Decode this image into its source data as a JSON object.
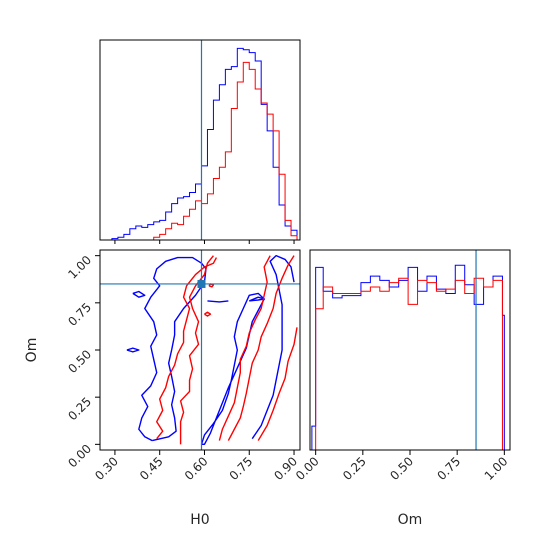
{
  "chart_data": [
    {
      "panel": "H0 marginal",
      "type": "histogram",
      "xlim": [
        0.25,
        0.92
      ],
      "truth": 0.59,
      "series": [
        {
          "color": "#0000ff",
          "edges": [
            0.25,
            0.27,
            0.29,
            0.31,
            0.33,
            0.35,
            0.37,
            0.39,
            0.41,
            0.43,
            0.45,
            0.47,
            0.49,
            0.51,
            0.53,
            0.55,
            0.57,
            0.59,
            0.61,
            0.63,
            0.65,
            0.67,
            0.69,
            0.71,
            0.73,
            0.75,
            0.77,
            0.79,
            0.81,
            0.83,
            0.85,
            0.87,
            0.89,
            0.91
          ],
          "counts": [
            0,
            0,
            1,
            2,
            4,
            8,
            10,
            9,
            11,
            13,
            14,
            20,
            26,
            30,
            31,
            34,
            40,
            53,
            79,
            100,
            111,
            122,
            124,
            137,
            136,
            134,
            128,
            97,
            78,
            52,
            25,
            10,
            7
          ]
        },
        {
          "color": "#ff0000",
          "edges": [
            0.25,
            0.27,
            0.29,
            0.31,
            0.33,
            0.35,
            0.37,
            0.39,
            0.41,
            0.43,
            0.45,
            0.47,
            0.49,
            0.51,
            0.53,
            0.55,
            0.57,
            0.59,
            0.61,
            0.63,
            0.65,
            0.67,
            0.69,
            0.71,
            0.73,
            0.75,
            0.77,
            0.79,
            0.81,
            0.83,
            0.85,
            0.87,
            0.89,
            0.91
          ],
          "counts": [
            0,
            0,
            0,
            0,
            0,
            0,
            0,
            0,
            0,
            2,
            4,
            8,
            12,
            11,
            17,
            22,
            28,
            26,
            33,
            44,
            52,
            63,
            94,
            113,
            127,
            122,
            108,
            98,
            90,
            78,
            47,
            14,
            3
          ]
        }
      ]
    },
    {
      "panel": "joint H0-Om",
      "type": "contour",
      "xlim": [
        0.25,
        0.92
      ],
      "ylim": [
        -0.03,
        1.03
      ],
      "truth": [
        0.59,
        0.85
      ],
      "series": [
        {
          "color": "#0000ff",
          "contours": [
            [
              [
                0.425,
                0.02
              ],
              [
                0.48,
                0.04
              ],
              [
                0.505,
                0.07
              ],
              [
                0.5,
                0.14
              ],
              [
                0.49,
                0.21
              ],
              [
                0.5,
                0.28
              ],
              [
                0.49,
                0.36
              ],
              [
                0.48,
                0.43
              ],
              [
                0.49,
                0.5
              ],
              [
                0.5,
                0.58
              ],
              [
                0.5,
                0.65
              ],
              [
                0.53,
                0.72
              ],
              [
                0.57,
                0.79
              ],
              [
                0.6,
                0.86
              ],
              [
                0.605,
                0.93
              ],
              [
                0.59,
                0.96
              ],
              [
                0.56,
                0.99
              ],
              [
                0.51,
                0.99
              ],
              [
                0.47,
                0.97
              ],
              [
                0.44,
                0.93
              ],
              [
                0.43,
                0.88
              ],
              [
                0.45,
                0.84
              ],
              [
                0.42,
                0.78
              ],
              [
                0.4,
                0.72
              ],
              [
                0.43,
                0.65
              ],
              [
                0.44,
                0.58
              ],
              [
                0.42,
                0.52
              ],
              [
                0.43,
                0.45
              ],
              [
                0.44,
                0.38
              ],
              [
                0.42,
                0.31
              ],
              [
                0.39,
                0.26
              ],
              [
                0.41,
                0.2
              ],
              [
                0.39,
                0.14
              ],
              [
                0.38,
                0.08
              ],
              [
                0.4,
                0.04
              ],
              [
                0.425,
                0.02
              ]
            ],
            [
              [
                0.59,
                0.0
              ],
              [
                0.6,
                0.05
              ],
              [
                0.63,
                0.11
              ],
              [
                0.66,
                0.18
              ],
              [
                0.68,
                0.27
              ],
              [
                0.69,
                0.34
              ],
              [
                0.7,
                0.42
              ],
              [
                0.71,
                0.5
              ],
              [
                0.7,
                0.57
              ],
              [
                0.71,
                0.65
              ],
              [
                0.73,
                0.72
              ],
              [
                0.75,
                0.79
              ],
              [
                0.78,
                0.8
              ],
              [
                0.8,
                0.77
              ],
              [
                0.78,
                0.71
              ],
              [
                0.76,
                0.65
              ],
              [
                0.75,
                0.58
              ],
              [
                0.74,
                0.51
              ],
              [
                0.72,
                0.44
              ],
              [
                0.7,
                0.37
              ],
              [
                0.68,
                0.3
              ],
              [
                0.66,
                0.22
              ],
              [
                0.64,
                0.14
              ],
              [
                0.62,
                0.06
              ],
              [
                0.6,
                0.0
              ],
              [
                0.59,
                0.0
              ]
            ],
            [
              [
                0.76,
                0.03
              ],
              [
                0.79,
                0.1
              ],
              [
                0.81,
                0.18
              ],
              [
                0.83,
                0.26
              ],
              [
                0.84,
                0.34
              ],
              [
                0.85,
                0.42
              ],
              [
                0.86,
                0.5
              ],
              [
                0.86,
                0.58
              ],
              [
                0.86,
                0.66
              ],
              [
                0.86,
                0.74
              ],
              [
                0.85,
                0.82
              ],
              [
                0.84,
                0.9
              ],
              [
                0.82,
                0.97
              ],
              [
                0.84,
                1.0
              ],
              [
                0.87,
                0.98
              ],
              [
                0.89,
                0.94
              ],
              [
                0.9,
                0.86
              ]
            ],
            [
              [
                0.34,
                0.5
              ],
              [
                0.36,
                0.49
              ],
              [
                0.38,
                0.5
              ],
              [
                0.36,
                0.51
              ],
              [
                0.34,
                0.5
              ]
            ],
            [
              [
                0.36,
                0.8
              ],
              [
                0.38,
                0.78
              ],
              [
                0.4,
                0.79
              ],
              [
                0.38,
                0.81
              ],
              [
                0.36,
                0.8
              ]
            ],
            [
              [
                0.61,
                0.76
              ],
              [
                0.65,
                0.755
              ],
              [
                0.68,
                0.76
              ]
            ],
            [
              [
                0.75,
                0.76
              ],
              [
                0.78,
                0.765
              ],
              [
                0.8,
                0.77
              ],
              [
                0.78,
                0.78
              ],
              [
                0.75,
                0.76
              ]
            ]
          ]
        },
        {
          "color": "#ff0000",
          "contours": [
            [
              [
                0.52,
                0.0
              ],
              [
                0.52,
                0.06
              ],
              [
                0.52,
                0.12
              ],
              [
                0.53,
                0.17
              ],
              [
                0.52,
                0.23
              ],
              [
                0.55,
                0.28
              ],
              [
                0.55,
                0.34
              ],
              [
                0.56,
                0.4
              ],
              [
                0.55,
                0.47
              ],
              [
                0.58,
                0.53
              ],
              [
                0.57,
                0.59
              ],
              [
                0.58,
                0.65
              ],
              [
                0.56,
                0.72
              ],
              [
                0.55,
                0.78
              ],
              [
                0.57,
                0.84
              ],
              [
                0.6,
                0.9
              ],
              [
                0.61,
                0.96
              ],
              [
                0.63,
                1.0
              ]
            ],
            [
              [
                0.44,
                0.03
              ],
              [
                0.46,
                0.07
              ],
              [
                0.44,
                0.12
              ],
              [
                0.46,
                0.18
              ],
              [
                0.45,
                0.24
              ],
              [
                0.47,
                0.3
              ],
              [
                0.48,
                0.36
              ],
              [
                0.5,
                0.42
              ],
              [
                0.51,
                0.48
              ],
              [
                0.53,
                0.54
              ],
              [
                0.53,
                0.6
              ],
              [
                0.54,
                0.66
              ],
              [
                0.55,
                0.72
              ],
              [
                0.53,
                0.78
              ],
              [
                0.54,
                0.84
              ],
              [
                0.57,
                0.9
              ],
              [
                0.6,
                0.94
              ],
              [
                0.63,
                0.96
              ],
              [
                0.64,
                0.99
              ]
            ],
            [
              [
                0.65,
                0.02
              ],
              [
                0.66,
                0.08
              ],
              [
                0.68,
                0.15
              ],
              [
                0.7,
                0.22
              ],
              [
                0.71,
                0.3
              ],
              [
                0.72,
                0.38
              ],
              [
                0.72,
                0.45
              ],
              [
                0.74,
                0.52
              ],
              [
                0.75,
                0.59
              ],
              [
                0.77,
                0.66
              ],
              [
                0.79,
                0.72
              ],
              [
                0.8,
                0.79
              ],
              [
                0.81,
                0.86
              ],
              [
                0.8,
                0.94
              ],
              [
                0.82,
                1.0
              ]
            ],
            [
              [
                0.68,
                0.02
              ],
              [
                0.7,
                0.08
              ],
              [
                0.72,
                0.14
              ],
              [
                0.73,
                0.2
              ],
              [
                0.74,
                0.27
              ],
              [
                0.75,
                0.35
              ],
              [
                0.76,
                0.43
              ],
              [
                0.78,
                0.5
              ],
              [
                0.79,
                0.57
              ],
              [
                0.81,
                0.64
              ],
              [
                0.83,
                0.72
              ],
              [
                0.84,
                0.8
              ],
              [
                0.86,
                0.88
              ],
              [
                0.88,
                0.95
              ],
              [
                0.9,
                1.0
              ]
            ],
            [
              [
                0.78,
                0.02
              ],
              [
                0.81,
                0.1
              ],
              [
                0.83,
                0.18
              ],
              [
                0.85,
                0.27
              ],
              [
                0.87,
                0.35
              ],
              [
                0.88,
                0.44
              ],
              [
                0.9,
                0.53
              ],
              [
                0.91,
                0.62
              ]
            ],
            [
              [
                0.6,
                0.69
              ],
              [
                0.61,
                0.68
              ],
              [
                0.62,
                0.69
              ],
              [
                0.61,
                0.7
              ],
              [
                0.6,
                0.69
              ]
            ],
            [
              [
                0.615,
                0.84
              ],
              [
                0.625,
                0.835
              ],
              [
                0.63,
                0.845
              ],
              [
                0.62,
                0.85
              ],
              [
                0.615,
                0.84
              ]
            ]
          ]
        }
      ]
    },
    {
      "panel": "Om marginal",
      "type": "histogram",
      "xlim": [
        -0.03,
        1.03
      ],
      "truth": 0.85,
      "series": [
        {
          "color": "#0000ff",
          "edges": [
            -0.02,
            0.0,
            0.04,
            0.09,
            0.14,
            0.19,
            0.24,
            0.29,
            0.34,
            0.39,
            0.44,
            0.49,
            0.54,
            0.59,
            0.64,
            0.69,
            0.74,
            0.79,
            0.84,
            0.89,
            0.94,
            0.99,
            1.0
          ],
          "counts": [
            11,
            84,
            73,
            70,
            71,
            71,
            77,
            80,
            78,
            75,
            78,
            84,
            73,
            80,
            74,
            72,
            85,
            76,
            67,
            75,
            80,
            62
          ]
        },
        {
          "color": "#ff0000",
          "edges": [
            -0.02,
            0.0,
            0.04,
            0.09,
            0.14,
            0.19,
            0.24,
            0.29,
            0.34,
            0.39,
            0.44,
            0.49,
            0.54,
            0.59,
            0.64,
            0.69,
            0.74,
            0.79,
            0.84,
            0.89,
            0.94,
            0.99,
            1.0
          ],
          "counts": [
            0,
            65,
            75,
            72,
            72,
            72,
            73,
            75,
            73,
            77,
            79,
            67,
            78,
            77,
            73,
            74,
            78,
            72,
            79,
            75,
            78,
            0
          ]
        }
      ]
    }
  ],
  "axes": {
    "h0_ticks": [
      "0.30",
      "0.45",
      "0.60",
      "0.75",
      "0.90"
    ],
    "om_ticks": [
      "0.00",
      "0.25",
      "0.50",
      "0.75",
      "1.00"
    ],
    "h0_label": "H0",
    "om_label": "Om"
  },
  "colors": {
    "truth": "#1f77b4",
    "series_a": "#0000ff",
    "series_b": "#ff0000",
    "axes": "#000000"
  }
}
